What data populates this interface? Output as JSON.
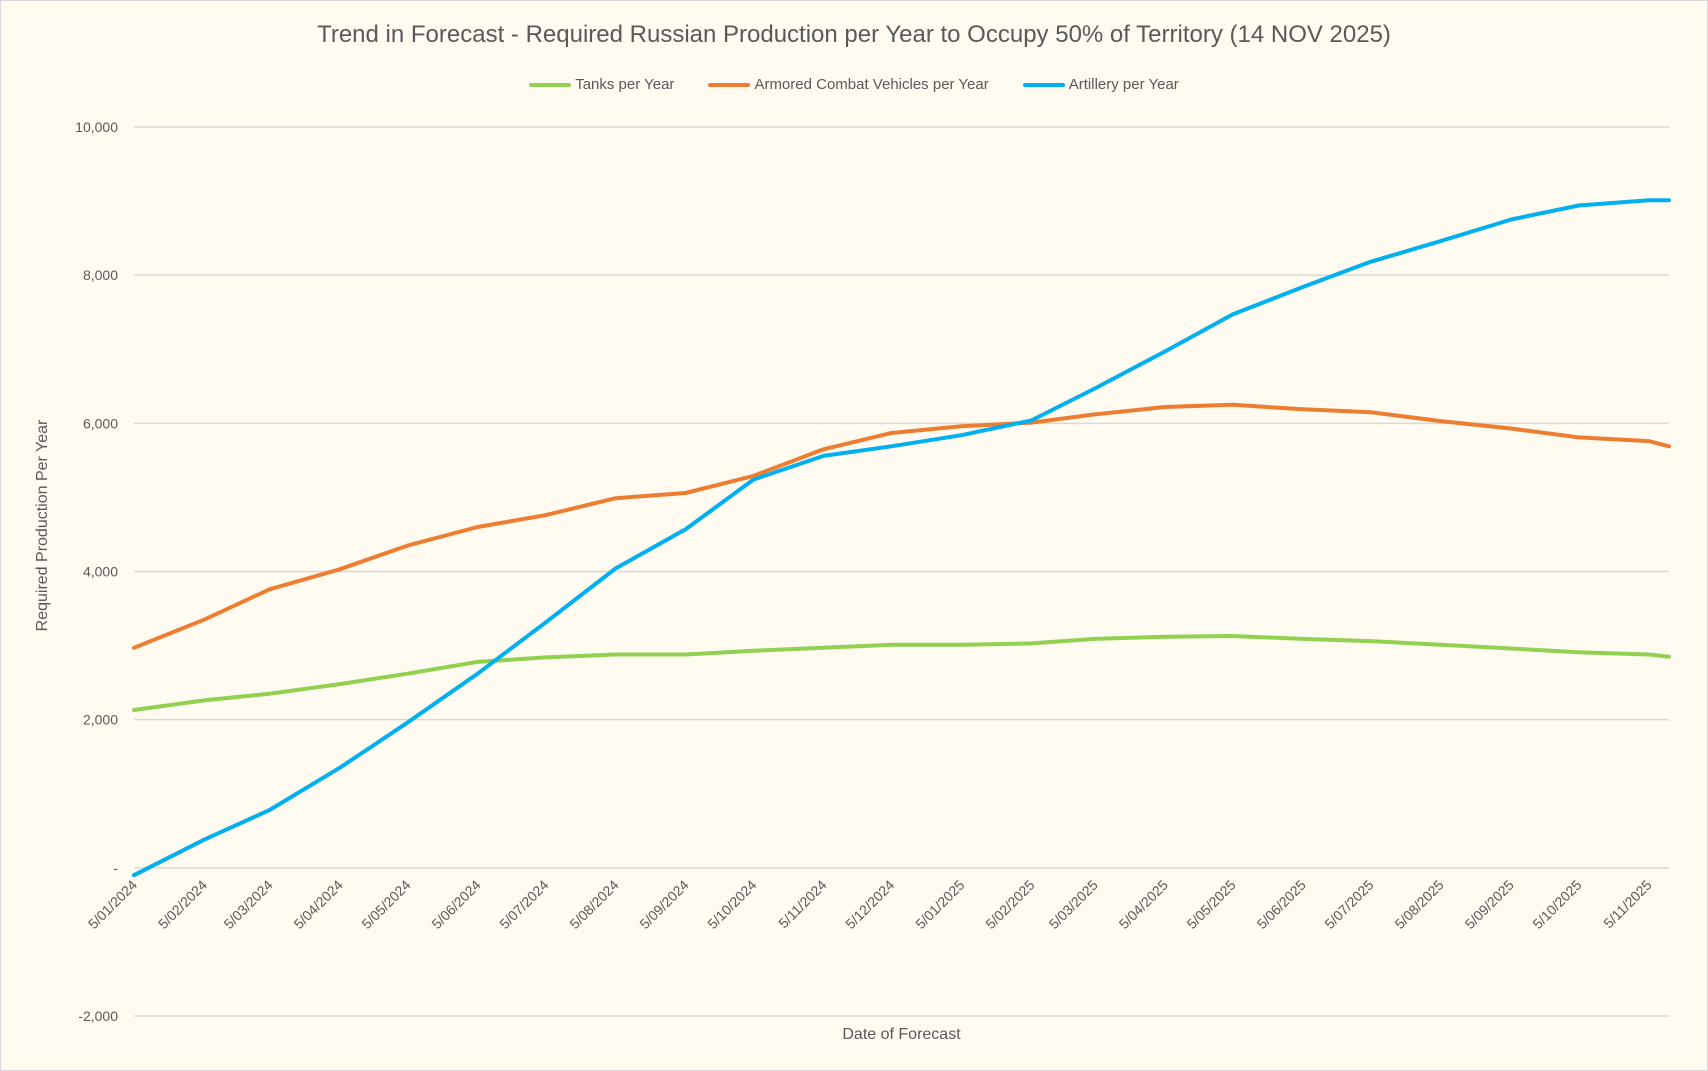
{
  "chart_data": {
    "type": "line",
    "title": "Trend in Forecast - Required Russian Production per Year to Occupy 50% of Territory (14 NOV 2025)",
    "xlabel": "Date of Forecast",
    "ylabel": "Required Production Per Year",
    "ylim": [
      -2000,
      10000
    ],
    "y_ticks": [
      10000,
      8000,
      6000,
      4000,
      2000,
      0,
      -2000
    ],
    "y_tick_labels": [
      "10,000",
      "8,000",
      "6,000",
      "4,000",
      "2,000",
      "-",
      "-2,000"
    ],
    "x_range": [
      "2024-01-05",
      "2025-11-14"
    ],
    "x_ticks": [
      "2024-01-05",
      "2024-02-05",
      "2024-03-05",
      "2024-04-05",
      "2024-05-05",
      "2024-06-05",
      "2024-07-05",
      "2024-08-05",
      "2024-09-05",
      "2024-10-05",
      "2024-11-05",
      "2024-12-05",
      "2025-01-05",
      "2025-02-05",
      "2025-03-05",
      "2025-04-05",
      "2025-05-05",
      "2025-06-05",
      "2025-07-05",
      "2025-08-05",
      "2025-09-05",
      "2025-10-05",
      "2025-11-05"
    ],
    "x_tick_labels": [
      "5/01/2024",
      "5/02/2024",
      "5/03/2024",
      "5/04/2024",
      "5/05/2024",
      "5/06/2024",
      "5/07/2024",
      "5/08/2024",
      "5/09/2024",
      "5/10/2024",
      "5/11/2024",
      "5/12/2024",
      "5/01/2025",
      "5/02/2025",
      "5/03/2025",
      "5/04/2025",
      "5/05/2025",
      "5/06/2025",
      "5/07/2025",
      "5/08/2025",
      "5/09/2025",
      "5/10/2025",
      "5/11/2025"
    ],
    "grid": true,
    "legend_position": "top",
    "x": [
      "2024-01-05",
      "2024-02-05",
      "2024-03-05",
      "2024-04-05",
      "2024-05-05",
      "2024-06-05",
      "2024-07-05",
      "2024-08-05",
      "2024-09-05",
      "2024-10-05",
      "2024-11-05",
      "2024-12-05",
      "2025-01-05",
      "2025-02-05",
      "2025-03-05",
      "2025-04-05",
      "2025-05-05",
      "2025-06-05",
      "2025-07-05",
      "2025-08-05",
      "2025-09-05",
      "2025-10-05",
      "2025-11-05",
      "2025-11-14"
    ],
    "series": [
      {
        "name": "Tanks per Year",
        "color": "#92d050",
        "values": [
          2130,
          2260,
          2350,
          2480,
          2620,
          2780,
          2840,
          2880,
          2880,
          2930,
          2970,
          3010,
          3010,
          3030,
          3090,
          3120,
          3130,
          3090,
          3060,
          3010,
          2960,
          2910,
          2880,
          2850
        ]
      },
      {
        "name": "Armored Combat Vehicles per Year",
        "color": "#ed7d31",
        "values": [
          2970,
          3350,
          3760,
          4030,
          4350,
          4600,
          4760,
          4990,
          5060,
          5290,
          5650,
          5870,
          5960,
          6010,
          6120,
          6220,
          6250,
          6190,
          6150,
          6030,
          5930,
          5810,
          5760,
          5690
        ]
      },
      {
        "name": "Artillery per Year",
        "color": "#00b0f0",
        "values": [
          -100,
          380,
          780,
          1350,
          1960,
          2620,
          3310,
          4040,
          4570,
          5240,
          5560,
          5690,
          5840,
          6040,
          6470,
          6970,
          7470,
          7840,
          8180,
          8460,
          8750,
          8940,
          9010,
          9010
        ]
      }
    ]
  }
}
